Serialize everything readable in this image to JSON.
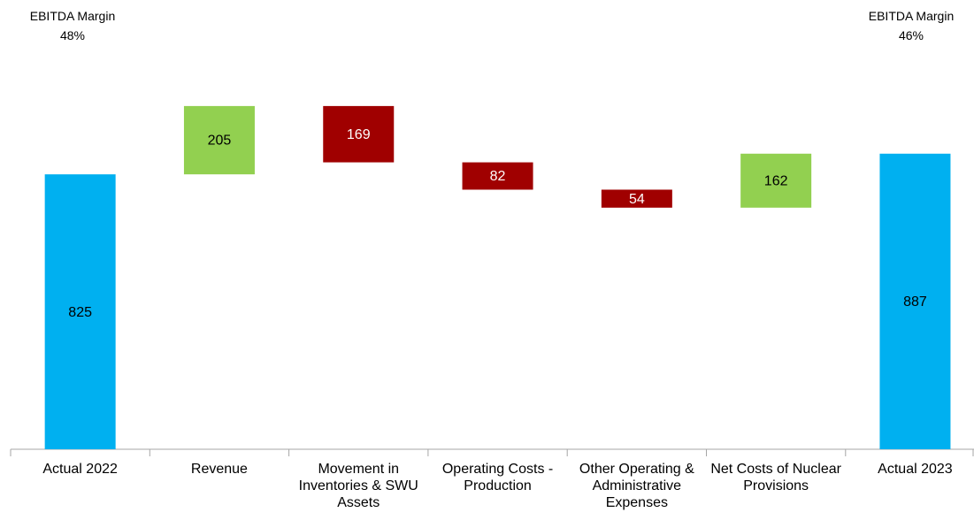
{
  "chart_data": {
    "type": "waterfall",
    "categories": [
      "Actual 2022",
      "Revenue",
      "Movement in Inventories & SWU Assets",
      "Operating Costs - Production",
      "Other Operating & Administrative Expenses",
      "Net Costs of Nuclear Provisions",
      "Actual 2023"
    ],
    "values": [
      825,
      205,
      -169,
      -82,
      -54,
      162,
      887
    ],
    "value_labels": [
      "825",
      "205",
      "169",
      "82",
      "54",
      "162",
      "887"
    ],
    "measure": [
      "total",
      "relative",
      "relative",
      "relative",
      "relative",
      "relative",
      "total"
    ],
    "colors": {
      "total": "#00b0f0",
      "increase": "#92d050",
      "decrease": "#a00000"
    },
    "ylim": [
      0,
      1250
    ],
    "annotations": [
      {
        "text": "EBITDA Margin",
        "label": "48%"
      },
      {
        "text": "EBITDA Margin",
        "label": "46%"
      }
    ]
  }
}
